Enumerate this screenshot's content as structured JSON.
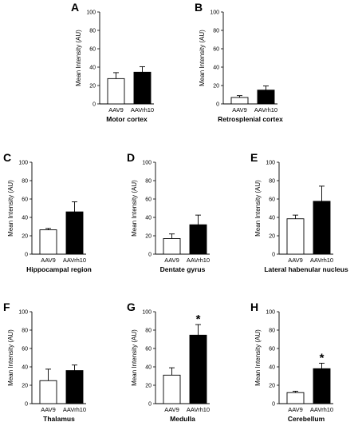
{
  "chart_data": [
    {
      "panel": "A",
      "type": "bar",
      "categories": [
        "AAV9",
        "AAVrh10"
      ],
      "values": [
        27.5,
        34.5
      ],
      "errors": [
        6.5,
        6.0
      ],
      "significance": [
        "",
        ""
      ],
      "ylabel": "Mean Intensity (AU)",
      "xlabel": "Motor cortex",
      "yticks": [
        "0",
        "20",
        "40",
        "60",
        "80",
        "100"
      ],
      "ylim": [
        0,
        100
      ],
      "colors": [
        "#ffffff",
        "#000000"
      ]
    },
    {
      "panel": "B",
      "type": "bar",
      "categories": [
        "AAV9",
        "AAVrh10"
      ],
      "values": [
        7.0,
        15.0
      ],
      "errors": [
        2.0,
        4.5
      ],
      "significance": [
        "",
        ""
      ],
      "ylabel": "Mean Intensity (AU)",
      "xlabel": "Retrosplenial cortex",
      "yticks": [
        "0",
        "20",
        "40",
        "60",
        "80",
        "100"
      ],
      "ylim": [
        0,
        100
      ],
      "colors": [
        "#ffffff",
        "#000000"
      ]
    },
    {
      "panel": "C",
      "type": "bar",
      "categories": [
        "AAV9",
        "AAVrh10"
      ],
      "values": [
        26.5,
        46.0
      ],
      "errors": [
        1.5,
        11.0
      ],
      "significance": [
        "",
        ""
      ],
      "ylabel": "Mean Intensity (AU)",
      "xlabel": "Hippocampal region",
      "yticks": [
        "0",
        "20",
        "40",
        "60",
        "80",
        "100"
      ],
      "ylim": [
        0,
        100
      ],
      "colors": [
        "#ffffff",
        "#000000"
      ]
    },
    {
      "panel": "D",
      "type": "bar",
      "categories": [
        "AAV9",
        "AAVrh10"
      ],
      "values": [
        17.0,
        32.0
      ],
      "errors": [
        5.0,
        10.5
      ],
      "significance": [
        "",
        ""
      ],
      "ylabel": "Mean Intensity (AU)",
      "xlabel": "Dentate gyrus",
      "yticks": [
        "0",
        "20",
        "40",
        "60",
        "80",
        "100"
      ],
      "ylim": [
        0,
        100
      ],
      "colors": [
        "#ffffff",
        "#000000"
      ]
    },
    {
      "panel": "E",
      "type": "bar",
      "categories": [
        "AAV9",
        "AAVrh10"
      ],
      "values": [
        38.5,
        57.5
      ],
      "errors": [
        4.0,
        16.5
      ],
      "significance": [
        "",
        ""
      ],
      "ylabel": "Mean Intensity (AU)",
      "xlabel": "Lateral habenular nucleus",
      "yticks": [
        "0",
        "20",
        "40",
        "60",
        "80",
        "100"
      ],
      "ylim": [
        0,
        100
      ],
      "colors": [
        "#ffffff",
        "#000000"
      ]
    },
    {
      "panel": "F",
      "type": "bar",
      "categories": [
        "AAV9",
        "AAVrh10"
      ],
      "values": [
        25.0,
        36.0
      ],
      "errors": [
        12.5,
        6.0
      ],
      "significance": [
        "",
        ""
      ],
      "ylabel": "Mean Intensity (AU)",
      "xlabel": "Thalamus",
      "yticks": [
        "0",
        "20",
        "40",
        "60",
        "80",
        "100"
      ],
      "ylim": [
        0,
        100
      ],
      "colors": [
        "#ffffff",
        "#000000"
      ]
    },
    {
      "panel": "G",
      "type": "bar",
      "categories": [
        "AAV9",
        "AAVrh10"
      ],
      "values": [
        31.0,
        74.5
      ],
      "errors": [
        8.0,
        11.5
      ],
      "significance": [
        "",
        "*"
      ],
      "ylabel": "Mean Intensity (AU)",
      "xlabel": "Medulla",
      "yticks": [
        "0",
        "20",
        "40",
        "60",
        "80",
        "100"
      ],
      "ylim": [
        0,
        100
      ],
      "colors": [
        "#ffffff",
        "#000000"
      ]
    },
    {
      "panel": "H",
      "type": "bar",
      "categories": [
        "AAV9",
        "AAVrh10"
      ],
      "values": [
        12.0,
        38.0
      ],
      "errors": [
        1.5,
        6.0
      ],
      "significance": [
        "",
        "*"
      ],
      "ylabel": "Mean Intensity (AU)",
      "xlabel": "Cerebellum",
      "yticks": [
        "0",
        "20",
        "40",
        "60",
        "80",
        "100"
      ],
      "ylim": [
        0,
        100
      ],
      "colors": [
        "#ffffff",
        "#000000"
      ]
    }
  ]
}
